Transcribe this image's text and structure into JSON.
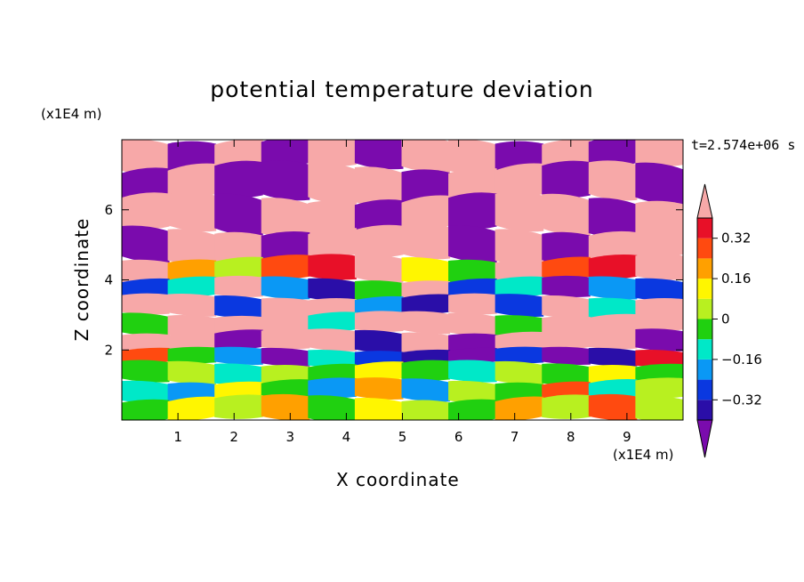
{
  "chart_data": {
    "type": "heatmap",
    "title": "potential temperature deviation",
    "xlabel": "X coordinate",
    "ylabel": "Z coordinate",
    "x_unit": "(x1E4 m)",
    "z_unit": "(x1E4 m)",
    "time_label": "t=2.574e+06 s",
    "xlim": [
      0,
      10
    ],
    "ylim": [
      0,
      8
    ],
    "x_ticks": [
      1,
      2,
      3,
      4,
      5,
      6,
      7,
      8,
      9
    ],
    "y_ticks": [
      2,
      4,
      6
    ],
    "colorbar": {
      "levels": [
        -0.4,
        -0.32,
        -0.24,
        -0.16,
        -0.08,
        0,
        0.08,
        0.16,
        0.24,
        0.32,
        0.4
      ],
      "labels": [
        "0.32",
        "0.16",
        "0",
        "−0.16",
        "−0.32"
      ],
      "label_values": [
        0.32,
        0.16,
        0,
        -0.16,
        -0.32
      ],
      "colors": [
        "#7a0bad",
        "#2a0ea8",
        "#0a38e0",
        "#0a98f5",
        "#00e8c8",
        "#20d010",
        "#b8f020",
        "#fff600",
        "#ffa000",
        "#ff4a10",
        "#e81028",
        "#f7a8a8"
      ]
    },
    "field_rows": [
      {
        "z": [
          7.2,
          8.0
        ],
        "pattern": [
          11,
          0,
          11,
          0,
          11,
          0,
          11,
          11,
          0,
          11,
          0,
          11
        ]
      },
      {
        "z": [
          6.3,
          7.2
        ],
        "pattern": [
          0,
          11,
          0,
          0,
          11,
          11,
          0,
          11,
          11,
          0,
          11,
          0
        ]
      },
      {
        "z": [
          5.4,
          6.3
        ],
        "pattern": [
          11,
          11,
          0,
          11,
          11,
          0,
          11,
          0,
          11,
          11,
          0,
          11
        ]
      },
      {
        "z": [
          4.6,
          5.4
        ],
        "pattern": [
          0,
          11,
          11,
          0,
          11,
          11,
          11,
          0,
          11,
          0,
          11,
          11
        ]
      },
      {
        "z": [
          4.0,
          4.6
        ],
        "pattern": [
          11,
          8,
          6,
          9,
          10,
          11,
          7,
          5,
          11,
          9,
          10,
          11
        ]
      },
      {
        "z": [
          3.5,
          4.0
        ],
        "pattern": [
          2,
          4,
          11,
          3,
          1,
          5,
          11,
          2,
          4,
          0,
          3,
          2
        ]
      },
      {
        "z": [
          3.0,
          3.5
        ],
        "pattern": [
          11,
          11,
          2,
          11,
          11,
          3,
          1,
          11,
          2,
          11,
          4,
          11
        ]
      },
      {
        "z": [
          2.5,
          3.0
        ],
        "pattern": [
          5,
          11,
          11,
          11,
          4,
          11,
          11,
          11,
          5,
          11,
          11,
          11
        ]
      },
      {
        "z": [
          2.0,
          2.5
        ],
        "pattern": [
          11,
          11,
          0,
          11,
          11,
          1,
          11,
          0,
          11,
          11,
          11,
          0
        ]
      },
      {
        "z": [
          1.6,
          2.0
        ],
        "pattern": [
          9,
          5,
          3,
          0,
          4,
          2,
          1,
          0,
          2,
          0,
          1,
          10
        ]
      },
      {
        "z": [
          1.1,
          1.6
        ],
        "pattern": [
          5,
          6,
          4,
          6,
          5,
          7,
          5,
          4,
          6,
          5,
          7,
          5
        ]
      },
      {
        "z": [
          0.6,
          1.1
        ],
        "pattern": [
          4,
          3,
          7,
          5,
          3,
          8,
          3,
          6,
          5,
          9,
          4,
          6
        ]
      },
      {
        "z": [
          0.0,
          0.6
        ],
        "pattern": [
          5,
          7,
          6,
          8,
          5,
          7,
          6,
          5,
          8,
          6,
          9,
          6
        ]
      }
    ]
  }
}
